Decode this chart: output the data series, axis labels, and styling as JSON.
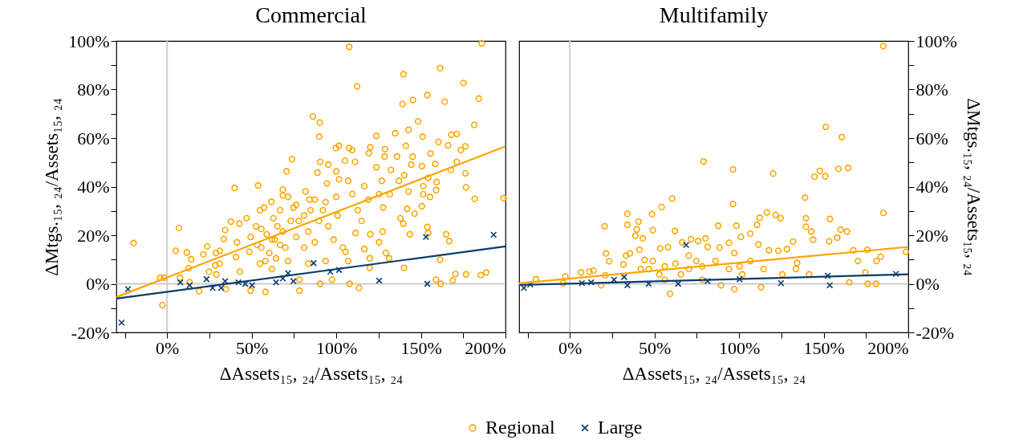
{
  "chart_data": [
    {
      "type": "scatter",
      "title": "Commercial",
      "xlabel": "ΔAssets₁₅, ₂₄/Assets₁₅, ₂₄",
      "ylabel": "ΔMtgs.₁₅, ₂₄/Assets₁₅, ₂₄",
      "legend": "bottom",
      "xlim": [
        -30,
        200
      ],
      "ylim": [
        -20,
        100
      ],
      "xticks": [
        {
          "value": -25,
          "label": null
        },
        {
          "value": 0,
          "label": "0%"
        },
        {
          "value": 25,
          "label": null
        },
        {
          "value": 50,
          "label": "50%"
        },
        {
          "value": 75,
          "label": null
        },
        {
          "value": 100,
          "label": "100%"
        },
        {
          "value": 125,
          "label": null
        },
        {
          "value": 150,
          "label": "150%"
        },
        {
          "value": 175,
          "label": null
        },
        {
          "value": 200,
          "label": "200%"
        }
      ],
      "yticks": [
        {
          "value": -20,
          "label": "-20%"
        },
        {
          "value": -10,
          "label": null
        },
        {
          "value": 0,
          "label": "0%"
        },
        {
          "value": 10,
          "label": null
        },
        {
          "value": 20,
          "label": "20%"
        },
        {
          "value": 30,
          "label": null
        },
        {
          "value": 40,
          "label": "40%"
        },
        {
          "value": 50,
          "label": null
        },
        {
          "value": 60,
          "label": "60%"
        },
        {
          "value": 70,
          "label": null
        },
        {
          "value": 80,
          "label": "80%"
        },
        {
          "value": 90,
          "label": null
        },
        {
          "value": 100,
          "label": "100%"
        }
      ],
      "ref_lines": [
        {
          "axis": "x",
          "value": 0,
          "color": "#cccccc"
        },
        {
          "axis": "y",
          "value": 0,
          "color": "#cccccc"
        }
      ],
      "series": [
        {
          "name": "Regional",
          "type": "scatter",
          "marker": "circle",
          "color": "#ffa500",
          "x": [
            -19.8,
            -4.1,
            -1.7,
            -2.8,
            7.0,
            5.1,
            11.7,
            14.2,
            12.7,
            7.6,
            13.3,
            21.4,
            23.7,
            24.8,
            18.9,
            28.8,
            31.2,
            28.5,
            31.0,
            29.1,
            33.5,
            34.3,
            37.7,
            39.9,
            41.3,
            42.7,
            40.8,
            43.0,
            34.8,
            47.0,
            49.4,
            48.6,
            49.4,
            53.8,
            54.9,
            57.3,
            55.7,
            53.3,
            54.9,
            58.1,
            61.7,
            62.8,
            58.9,
            60.4,
            62.0,
            68.4,
            68.4,
            66.8,
            65.2,
            66.8,
            64.4,
            70.6,
            73.9,
            71.5,
            74.7,
            73.1,
            76.3,
            71.5,
            78.2,
            78.2,
            81.8,
            84.2,
            81.0,
            83.4,
            81.0,
            83.4,
            86.2,
            90.2,
            89.9,
            90.5,
            88.9,
            87.3,
            89.7,
            87.3,
            90.5,
            95.3,
            94.5,
            93.7,
            95.3,
            93.7,
            97.5,
            99.7,
            101.6,
            100.0,
            101.6,
            100.0,
            100.8,
            98.4,
            103.9,
            105.5,
            107.6,
            112.3,
            107.6,
            109.5,
            105.1,
            111.1,
            107.1,
            109.5,
            112.7,
            111.4,
            107.1,
            107.9,
            113.4,
            120.1,
            119.3,
            116.6,
            119.0,
            115.0,
            120.1,
            116.6,
            119.8,
            119.8,
            123.7,
            123.7,
            126.9,
            125.3,
            127.7,
            127.4,
            125.3,
            129.3,
            131.2,
            128.8,
            128.5,
            134.8,
            135.9,
            132.3,
            137.0,
            131.6,
            137.9,
            139.6,
            140.0,
            139.7,
            139.2,
            145.3,
            142.7,
            141.1,
            145.1,
            144.3,
            140.2,
            142.7,
            141.9,
            146.3,
            143.5,
            148.3,
            151.1,
            150.6,
            151.4,
            151.4,
            150.6,
            153.8,
            154.3,
            153.8,
            154.3,
            155.4,
            155.7,
            158.5,
            161.4,
            164.1,
            160.4,
            159.3,
            159.0,
            161.4,
            158.9,
            161.7,
            166.1,
            167.7,
            164.9,
            166.8,
            168.0,
            171.2,
            171.2,
            173.6,
            175.2,
            176.3,
            176.3,
            176.7,
            170.4,
            168.8,
            176.7,
            181.5,
            181.8,
            184.2,
            186.0,
            185.4,
            188.6,
            198.9,
            55.7,
            58.1,
            63.6,
            68.4,
            69.9,
            77.8,
            52.5,
            62.0,
            76.3,
            84.8,
            92.1
          ],
          "values": [
            16.8,
            2.5,
            2.5,
            -8.8,
            23.0,
            13.6,
            12.9,
            10.1,
            6.4,
            2.5,
            0.6,
            12.1,
            15.4,
            5.0,
            -3.0,
            12.7,
            13.6,
            7.6,
            8.3,
            3.9,
            18.5,
            22.1,
            25.6,
            39.5,
            17.1,
            24.8,
            11.0,
            5.0,
            -2.2,
            27.0,
            19.3,
            13.2,
            -2.8,
            40.5,
            30.3,
            31.4,
            22.6,
            16.0,
            8.3,
            -3.3,
            33.8,
            27.0,
            20.4,
            12.7,
            6.1,
            38.8,
            36.4,
            30.3,
            23.7,
            16.0,
            10.5,
            46.3,
            51.3,
            35.8,
            31.4,
            25.9,
            19.3,
            9.4,
            -2.8,
            1.7,
            38.0,
            34.7,
            28.1,
            21.5,
            14.9,
            8.3,
            68.9,
            66.4,
            60.6,
            50.2,
            45.8,
            34.7,
            25.9,
            17.1,
            0.0,
            49.1,
            41.3,
            33.6,
            23.7,
            9.4,
            1.7,
            55.9,
            56.8,
            46.3,
            43.0,
            35.8,
            28.1,
            18.2,
            14.9,
            13.2,
            97.6,
            81.3,
            55.9,
            55.1,
            50.7,
            50.2,
            42.4,
            37.0,
            30.3,
            20.9,
            9.4,
            0.0,
            -1.7,
            56.2,
            53.8,
            40.2,
            34.7,
            25.9,
            20.4,
            14.3,
            10.5,
            6.6,
            60.9,
            48.0,
            42.4,
            36.9,
            31.4,
            21.5,
            17.1,
            12.7,
            10.5,
            55.5,
            52.4,
            62.0,
            52.4,
            46.9,
            42.4,
            36.9,
            27.0,
            24.8,
            6.6,
            86.3,
            74.0,
            75.7,
            63.4,
            56.8,
            52.4,
            49.1,
            44.7,
            38.0,
            30.9,
            28.9,
            20.4,
            66.9,
            60.6,
            48.5,
            40.2,
            36.9,
            32.0,
            77.7,
            43.6,
            23.4,
            20.9,
            35.8,
            53.7,
            49.4,
            88.8,
            75.0,
            58.4,
            41.9,
            38.6,
            9.9,
            1.7,
            0.0,
            57.0,
            46.9,
            20.4,
            17.6,
            61.4,
            61.7,
            50.2,
            55.1,
            82.7,
            56.6,
            45.5,
            39.7,
            4.1,
            1.4,
            3.9,
            65.4,
            35.0,
            76.3,
            99.0,
            3.6,
            4.7,
            35.3,
            14.9,
            9.4,
            18.2,
            21.5,
            14.9,
            25.9,
            23.7,
            18.2,
            32.5,
            30.3,
            30.3
          ]
        },
        {
          "name": "Large",
          "type": "scatter",
          "marker": "cross",
          "color": "#0b3c6e",
          "x": [
            -26.9,
            -23.1,
            7.8,
            13.3,
            23.3,
            26.9,
            32.0,
            34.3,
            42.2,
            46.2,
            50.2,
            64.4,
            68.4,
            71.5,
            74.7,
            86.6,
            96.5,
            101.6,
            125.3,
            153.0,
            153.8,
            193.0
          ],
          "values": [
            -16.0,
            -2.2,
            0.6,
            -0.6,
            1.9,
            -1.7,
            -1.7,
            1.1,
            0.6,
            0,
            -0.6,
            0.6,
            2.2,
            4.4,
            1.1,
            8.5,
            5.0,
            5.7,
            1.3,
            19.3,
            0,
            20.2
          ]
        },
        {
          "type": "line",
          "color": "#ffa500",
          "x": [
            -30,
            200
          ],
          "values": [
            -5.5,
            56.6
          ]
        },
        {
          "type": "line",
          "color": "#0b3c6e",
          "x": [
            -30,
            200
          ],
          "values": [
            -6.1,
            15.4
          ]
        }
      ]
    },
    {
      "type": "scatter",
      "title": "Multifamily",
      "xlabel": "ΔAssets₁₅, ₂₄/Assets₁₅, ₂₄",
      "y2label": "ΔMtgs.₁₅, ₂₄/Assets₁₅, ₂₄",
      "legend": "bottom",
      "xlim": [
        -30,
        200
      ],
      "y2lim": [
        -20,
        100
      ],
      "xticks": [
        {
          "value": -25,
          "label": null
        },
        {
          "value": 0,
          "label": "0%"
        },
        {
          "value": 25,
          "label": null
        },
        {
          "value": 50,
          "label": "50%"
        },
        {
          "value": 75,
          "label": null
        },
        {
          "value": 100,
          "label": "100%"
        },
        {
          "value": 125,
          "label": null
        },
        {
          "value": 150,
          "label": "150%"
        },
        {
          "value": 175,
          "label": null
        },
        {
          "value": 200,
          "label": "200%"
        }
      ],
      "y2ticks": [
        {
          "value": -20,
          "label": "-20%"
        },
        {
          "value": -10,
          "label": null
        },
        {
          "value": 0,
          "label": "0%"
        },
        {
          "value": 10,
          "label": null
        },
        {
          "value": 20,
          "label": "20%"
        },
        {
          "value": 30,
          "label": null
        },
        {
          "value": 40,
          "label": "40%"
        },
        {
          "value": 50,
          "label": null
        },
        {
          "value": 60,
          "label": "60%"
        },
        {
          "value": 70,
          "label": null
        },
        {
          "value": 80,
          "label": "80%"
        },
        {
          "value": 90,
          "label": null
        },
        {
          "value": 100,
          "label": "100%"
        }
      ],
      "ref_lines": [
        {
          "axis": "x",
          "value": 0,
          "color": "#cccccc"
        },
        {
          "axis": "y2",
          "value": 0,
          "color": "#cccccc"
        }
      ],
      "series": [
        {
          "name": "Regional",
          "type": "scatter",
          "marker": "circle",
          "color": "#ffa500",
          "axis": "y2",
          "x": [
            -20.1,
            -3.9,
            -2.7,
            6.6,
            11.5,
            13.9,
            20.5,
            21.3,
            23.2,
            21.0,
            18.5,
            34.0,
            34.0,
            31.6,
            33.2,
            35.5,
            39.5,
            40.6,
            38.7,
            43.1,
            41.1,
            44.2,
            41.9,
            48.5,
            49.0,
            49.0,
            53.4,
            54.2,
            60.5,
            62.1,
            58.0,
            59.2,
            56.1,
            66.4,
            71.6,
            75.8,
            80.1,
            79.0,
            81.4,
            74.7,
            70.3,
            65.6,
            88.5,
            87.7,
            96.4,
            96.4,
            98.4,
            101.1,
            94.0,
            97.2,
            100.3,
            97.2,
            106.6,
            110.6,
            112.2,
            111.5,
            116.4,
            120.1,
            121.6,
            124.5,
            123.2,
            117.7,
            128.3,
            131.9,
            134.3,
            113.0,
            139.0,
            139.5,
            139.5,
            142.7,
            143.8,
            144.5,
            147.7,
            150.9,
            151.2,
            153.2,
            153.7,
            158.0,
            158.8,
            160.0,
            160.7,
            163.8,
            164.5,
            167.5,
            170.3,
            175.8,
            174.6,
            165.1,
            176.1,
            180.9,
            181.2,
            183.7,
            185.3,
            185.2,
            198.6,
            46.6,
            52.9,
            62.4,
            70.3,
            78.2,
            86.1,
            94.0,
            101.9,
            106.6,
            114.5,
            125.6,
            133.5,
            141.4,
            56.1,
            78.2,
            89.3
          ],
          "values": [
            1.9,
            0.3,
            3.0,
            4.7,
            5.0,
            5.4,
            23.7,
            12.5,
            9.3,
            3.5,
            -0.6,
            28.8,
            24.3,
            8.0,
            11.6,
            12.5,
            22.4,
            25.6,
            19.8,
            18.7,
            14.0,
            9.9,
            6.1,
            28.7,
            22.1,
            9.4,
            14.6,
            31.6,
            35.1,
            21.8,
            15.1,
            -4.1,
            7.2,
            17.1,
            18.4,
            17.6,
            18.7,
            50.4,
            15.2,
            9.4,
            6.1,
            3.9,
            14.9,
            23.9,
            47.1,
            32.9,
            23.9,
            19.3,
            16.9,
            12.7,
            7.2,
            -2.2,
            20.7,
            24.3,
            27.2,
            16.2,
            29.4,
            45.4,
            28.4,
            27.0,
            13.6,
            13.8,
            14.3,
            17.4,
            8.6,
            -1.4,
            35.5,
            27.0,
            23.5,
            21.5,
            18.2,
            44.1,
            46.5,
            44.3,
            64.6,
            17.5,
            26.7,
            19.0,
            47.3,
            22.3,
            60.4,
            21.5,
            47.7,
            13.8,
            9.4,
            14.0,
            4.7,
            0.6,
            0,
            0,
            9.4,
            11.2,
            29.2,
            97.9,
            13.2,
            6.1,
            3.9,
            8.3,
            11.6,
            7.2,
            9.4,
            6.1,
            3.9,
            9.4,
            6.1,
            3.9,
            6.1,
            3.9,
            1.7,
            1.7,
            -0.6
          ]
        },
        {
          "name": "Large",
          "type": "scatter",
          "marker": "cross",
          "color": "#0b3c6e",
          "axis": "y2",
          "x": [
            -27.2,
            -23.4,
            7.1,
            12.6,
            26.1,
            32.1,
            34.0,
            68.7,
            64.0,
            100.3,
            124.8,
            152.4,
            153.6,
            192.7,
            46.6,
            81.4
          ],
          "values": [
            -1.7,
            -0.3,
            0.3,
            0.6,
            1.7,
            2.8,
            -0.6,
            16.0,
            0,
            1.9,
            0.3,
            3.3,
            -0.6,
            4.1,
            0,
            1.1
          ]
        },
        {
          "type": "line",
          "color": "#ffa500",
          "axis": "y2",
          "x": [
            -30,
            200
          ],
          "values": [
            0.2,
            15.2
          ]
        },
        {
          "type": "line",
          "color": "#0b3c6e",
          "axis": "y2",
          "x": [
            -30,
            200
          ],
          "values": [
            -0.5,
            3.9
          ]
        }
      ]
    }
  ]
}
